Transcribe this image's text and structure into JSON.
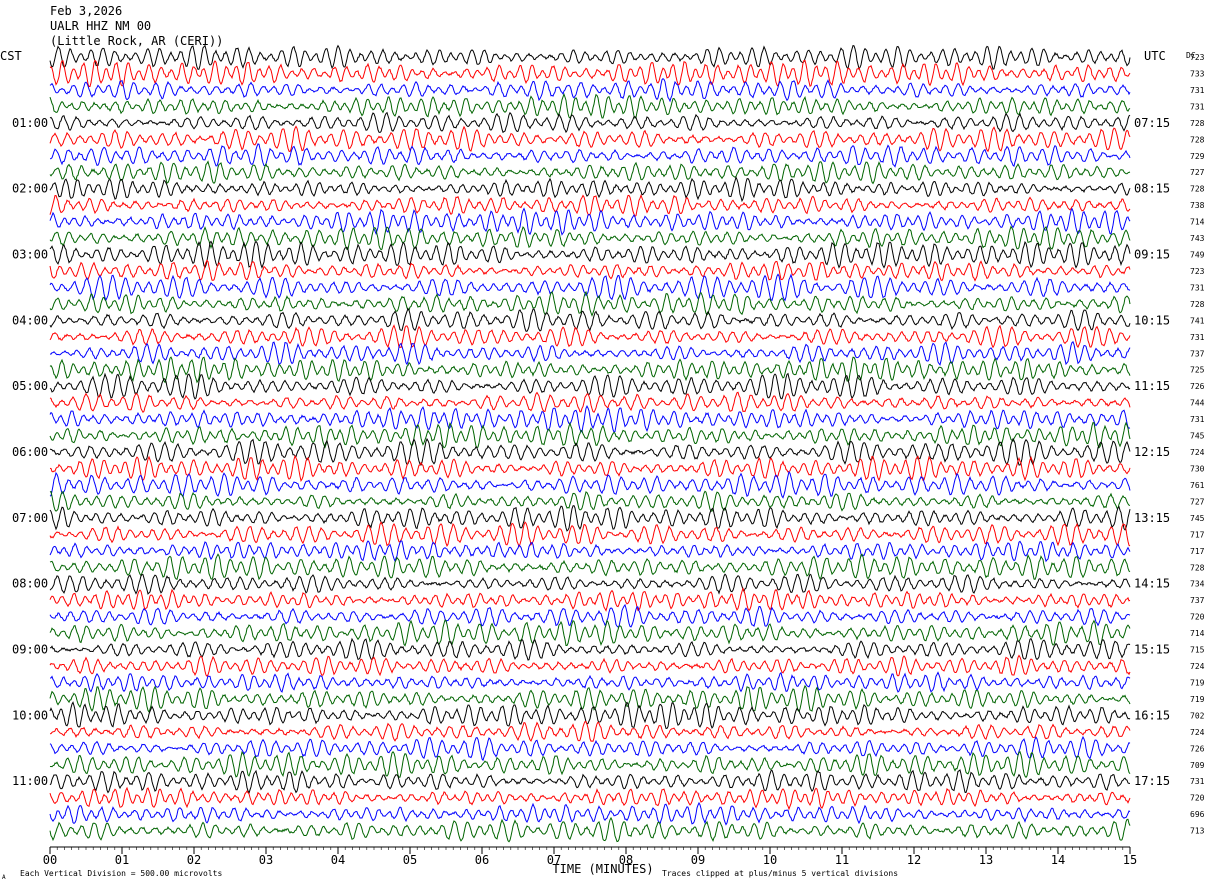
{
  "header": {
    "date": "Feb 3,2026",
    "station": "UALR HHZ NM 00",
    "location": "(Little Rock, AR (CERI))"
  },
  "left_axis_label": "CST",
  "right_axis_label": "UTC",
  "dc_label": "DC",
  "footer": {
    "xlabel": "TIME (MINUTES)",
    "scale_note": "Each Vertical Division =  500.00 microvolts",
    "clip_note": "Traces clipped at plus/minus 5 vertical divisions",
    "corner_mark": "A"
  },
  "chart_data": {
    "type": "line",
    "title": "",
    "xlabel": "TIME (MINUTES)",
    "x_range": [
      0,
      15
    ],
    "x_ticks": [
      "00",
      "01",
      "02",
      "03",
      "04",
      "05",
      "06",
      "07",
      "08",
      "09",
      "10",
      "11",
      "12",
      "13",
      "14",
      "15"
    ],
    "trace_minutes": 15,
    "trace_count": 48,
    "trace_colors": [
      "#000000",
      "#ff0000",
      "#0000ff",
      "#006400"
    ],
    "left_hour_labels": [
      "01:00",
      "02:00",
      "03:00",
      "04:00",
      "05:00",
      "06:00",
      "07:00",
      "08:00",
      "09:00",
      "10:00",
      "11:00"
    ],
    "right_hour_labels": [
      "07:15",
      "08:15",
      "09:15",
      "10:15",
      "11:15",
      "12:15",
      "13:15",
      "14:15",
      "15:15",
      "16:15",
      "17:15"
    ],
    "dc_offsets": [
      723,
      733,
      731,
      731,
      728,
      728,
      729,
      727,
      728,
      738,
      714,
      743,
      749,
      723,
      731,
      728,
      741,
      731,
      737,
      725,
      726,
      744,
      731,
      745,
      724,
      730,
      761,
      727,
      745,
      717,
      717,
      728,
      734,
      737,
      720,
      714,
      715,
      724,
      719,
      719,
      702,
      724,
      726,
      709,
      731,
      720,
      696,
      713
    ],
    "vertical_division_microvolts": 500.0,
    "clip_divisions": 5,
    "grid": false
  }
}
